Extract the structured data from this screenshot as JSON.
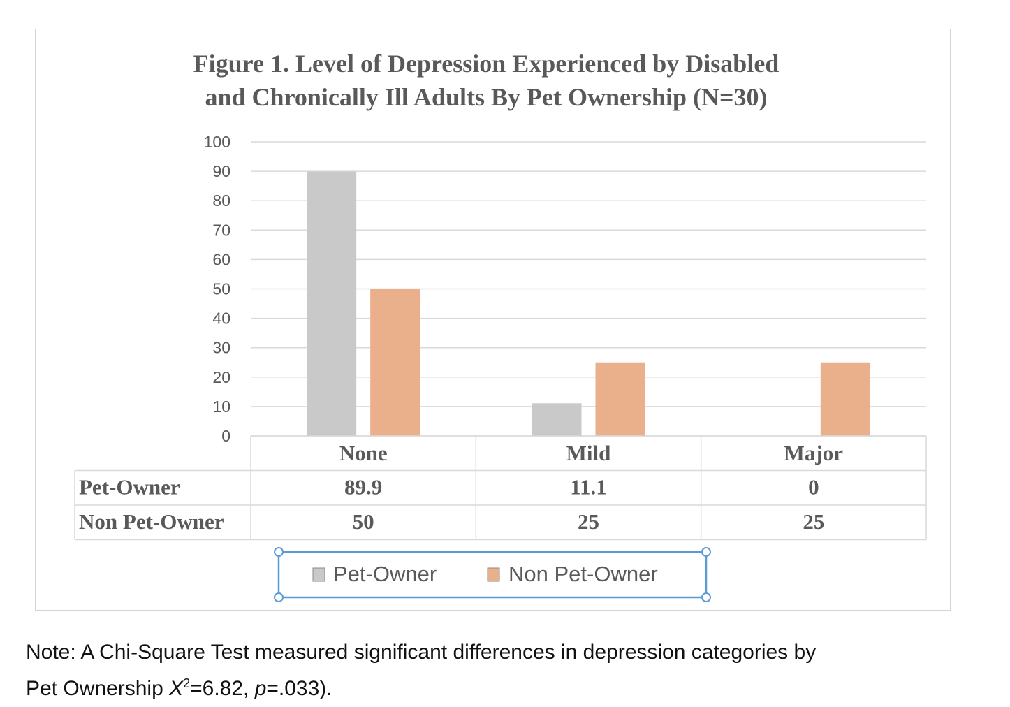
{
  "chart_data": {
    "type": "bar",
    "title_lines": [
      "Figure 1. Level of Depression Experienced by Disabled",
      "and Chronically Ill Adults By Pet Ownership (N=30)"
    ],
    "categories": [
      "None",
      "Mild",
      "Major"
    ],
    "series": [
      {
        "name": "Pet-Owner",
        "values": [
          89.9,
          11.1,
          0
        ],
        "labels": [
          "89.9",
          "11.1",
          "0"
        ],
        "color": "#c9c9c9"
      },
      {
        "name": "Non Pet-Owner",
        "values": [
          50,
          25,
          25
        ],
        "labels": [
          "50",
          "25",
          "25"
        ],
        "color": "#e9b08b"
      }
    ],
    "ylim": [
      0,
      100
    ],
    "yticks": [
      0,
      10,
      20,
      30,
      40,
      50,
      60,
      70,
      80,
      90,
      100
    ],
    "grid": true,
    "legend": "bottom",
    "data_table": true
  },
  "note": {
    "line1": "Note: A Chi-Square Test measured significant differences in depression categories by",
    "line2_prefix": "Pet Ownership ",
    "x_symbol": "X",
    "superscript": "2",
    "line2_mid": "=6.82, ",
    "p_symbol": "p",
    "line2_suffix": "=.033)."
  },
  "colors": {
    "gridline": "#d9d9d9",
    "table_border": "#d9d9d9",
    "selection": "#5b9bd5"
  }
}
